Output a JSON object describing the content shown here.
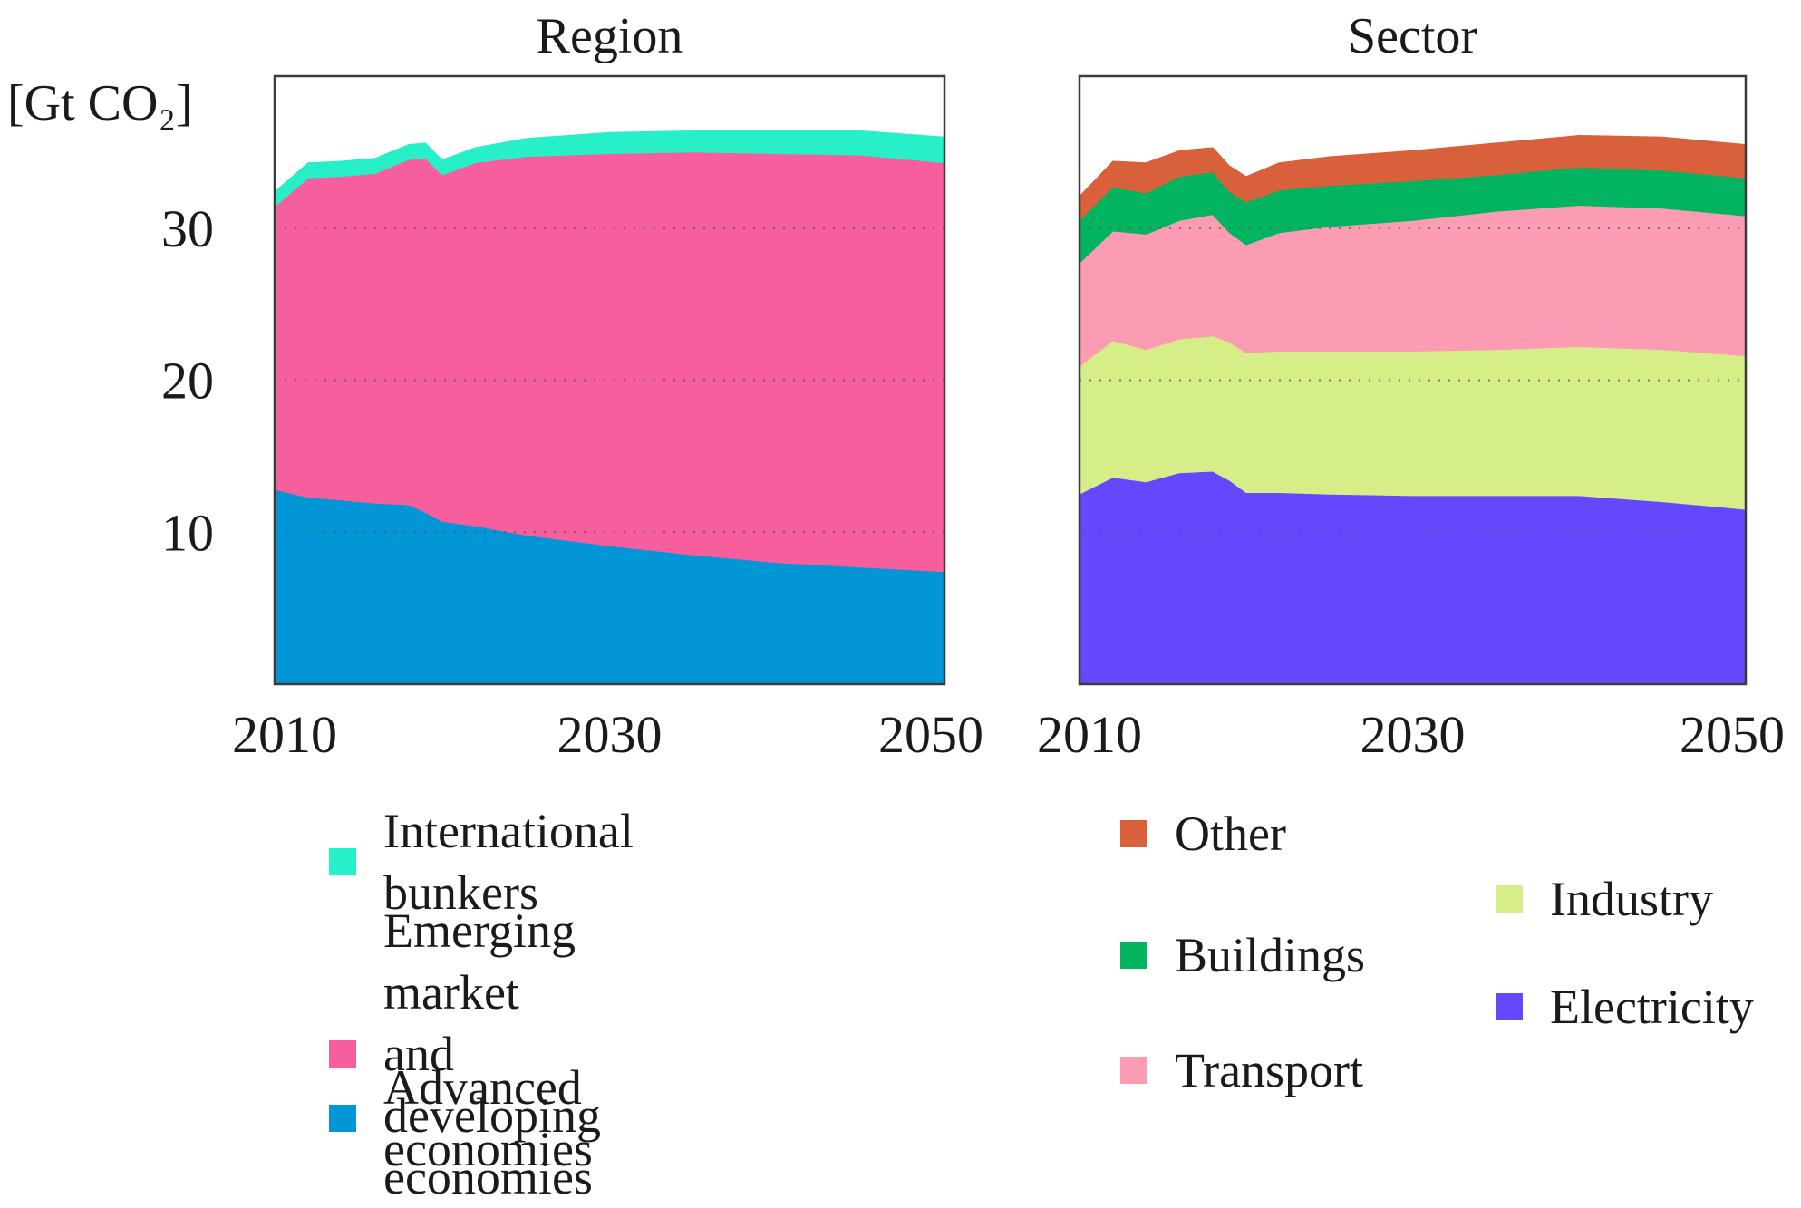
{
  "chart_data": [
    {
      "type": "area",
      "stacked": true,
      "title": "Region",
      "ylabel": "[Gt CO₂]",
      "xlim": [
        2010,
        2050
      ],
      "ylim": [
        0,
        40
      ],
      "yticks": [
        10,
        20,
        30
      ],
      "xticks": [
        2010,
        2030,
        2050
      ],
      "grid": "horizontal dotted",
      "x": [
        2010,
        2012,
        2014,
        2016,
        2018,
        2019,
        2020,
        2022,
        2025,
        2030,
        2035,
        2040,
        2045,
        2050
      ],
      "series": [
        {
          "name": "Advanced economies",
          "color": "#0396d6",
          "values": [
            12.8,
            12.3,
            12.1,
            11.9,
            11.8,
            11.3,
            10.7,
            10.4,
            9.8,
            9.1,
            8.5,
            8.0,
            7.7,
            7.4
          ]
        },
        {
          "name": "Emerging market and developing economies",
          "color": "#f65e9d",
          "values": [
            18.6,
            21.0,
            21.3,
            21.7,
            22.7,
            23.3,
            22.8,
            23.9,
            24.9,
            25.8,
            26.5,
            26.9,
            27.1,
            26.9
          ]
        },
        {
          "name": "International bunkers",
          "color": "#27f0c8",
          "values": [
            1.0,
            1.0,
            1.0,
            1.0,
            1.0,
            1.0,
            1.0,
            1.0,
            1.2,
            1.4,
            1.4,
            1.5,
            1.6,
            1.7
          ]
        }
      ]
    },
    {
      "type": "area",
      "stacked": true,
      "title": "Sector",
      "xlim": [
        2010,
        2050
      ],
      "ylim": [
        0,
        40
      ],
      "xticks": [
        2010,
        2030,
        2050
      ],
      "grid": "horizontal dotted",
      "x": [
        2010,
        2012,
        2014,
        2016,
        2018,
        2019,
        2020,
        2022,
        2025,
        2030,
        2035,
        2040,
        2045,
        2050
      ],
      "series": [
        {
          "name": "Electricity",
          "color": "#6448fe",
          "values": [
            12.5,
            13.6,
            13.3,
            13.9,
            14.0,
            13.4,
            12.6,
            12.6,
            12.5,
            12.4,
            12.4,
            12.4,
            12.0,
            11.5
          ]
        },
        {
          "name": "Industry",
          "color": "#d6ee88",
          "values": [
            8.4,
            9.0,
            8.7,
            8.8,
            8.9,
            9.1,
            9.2,
            9.3,
            9.4,
            9.5,
            9.6,
            9.8,
            10.0,
            10.1
          ]
        },
        {
          "name": "Transport",
          "color": "#fb9cb3",
          "values": [
            6.8,
            7.2,
            7.6,
            7.8,
            8.0,
            7.2,
            7.1,
            7.8,
            8.2,
            8.6,
            9.1,
            9.3,
            9.3,
            9.2
          ]
        },
        {
          "name": "Buildings",
          "color": "#02b360",
          "values": [
            2.8,
            2.9,
            2.7,
            2.9,
            2.8,
            2.7,
            2.8,
            2.8,
            2.7,
            2.6,
            2.4,
            2.5,
            2.5,
            2.5
          ]
        },
        {
          "name": "Other",
          "color": "#d8603a",
          "values": [
            1.6,
            1.7,
            2.0,
            1.7,
            1.6,
            1.7,
            1.7,
            1.8,
            1.9,
            2.0,
            2.1,
            2.1,
            2.2,
            2.2
          ]
        }
      ]
    }
  ],
  "legends": {
    "region": [
      {
        "label": "International bunkers",
        "color": "#27f0c8"
      },
      {
        "label": "Emerging market and\ndeveloping economies",
        "color": "#f65e9d"
      },
      {
        "label": "Advanced economies",
        "color": "#0396d6"
      }
    ],
    "sector": [
      {
        "label": "Other",
        "color": "#d8603a"
      },
      {
        "label": "Buildings",
        "color": "#02b360"
      },
      {
        "label": "Transport",
        "color": "#fb9cb3"
      },
      {
        "label": "Industry",
        "color": "#d6ee88"
      },
      {
        "label": "Electricity",
        "color": "#6448fe"
      }
    ]
  }
}
